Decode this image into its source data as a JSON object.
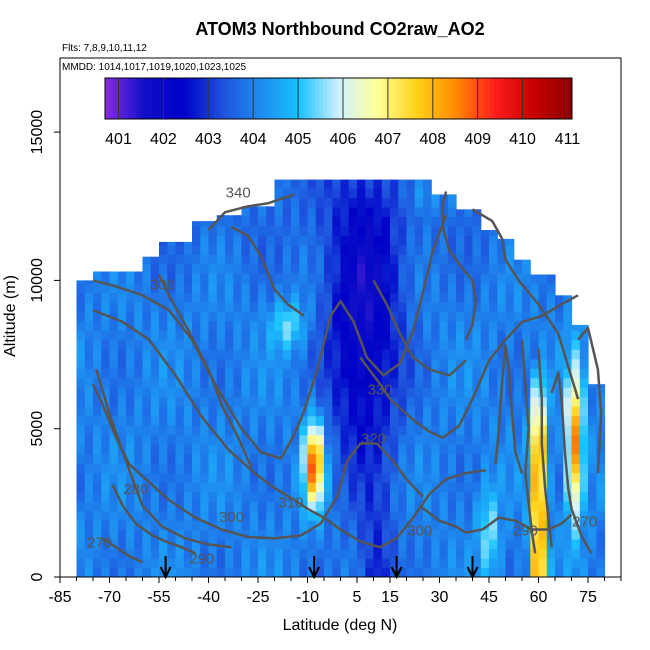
{
  "chart_data": {
    "type": "heatmap",
    "title": "ATOM3 Northbound CO2raw_AO2",
    "flights_text": "Flts: 7,8,9,10,11,12",
    "dates_text": "MMDD: 1014,1017,1019,1020,1023,1025",
    "xlabel": "Latitude (deg N)",
    "ylabel": "Altitude (m)",
    "xlim": [
      -85,
      85
    ],
    "ylim": [
      0,
      17500
    ],
    "x_ticks": [
      "-85",
      "-70",
      "-55",
      "-40",
      "-25",
      "-10",
      "5",
      "15",
      "30",
      "45",
      "60",
      "75"
    ],
    "y_ticks": [
      "0",
      "5000",
      "10000",
      "15000"
    ],
    "colorbar": {
      "min": 400.7,
      "max": 411.1,
      "ticks": [
        "401",
        "402",
        "403",
        "404",
        "405",
        "406",
        "407",
        "408",
        "409",
        "410",
        "411"
      ],
      "colors": [
        "#8a2be2",
        "#1010c8",
        "#0000c8",
        "#1e50dc",
        "#1e8cf0",
        "#19c3ff",
        "#d0f0ff",
        "#ffff9a",
        "#ffd21a",
        "#ff8c00",
        "#ff1e1e",
        "#c80000",
        "#8b0000"
      ]
    },
    "contour_labels": [
      "340",
      "330",
      "320",
      "310",
      "300",
      "300",
      "300",
      "290",
      "290",
      "280",
      "270",
      "270"
    ],
    "flight_transition_latitudes": [
      -53,
      -8,
      17,
      40
    ],
    "notes": "Curtain of CO2 (ppm) vs latitude and altitude; mostly 403-405 ppm, with a low (401-402 ppm) plume near 0-15N aloft and high values (407-410 ppm) near -8N and 60-72N in the lower troposphere; gray isentropes (K)."
  }
}
